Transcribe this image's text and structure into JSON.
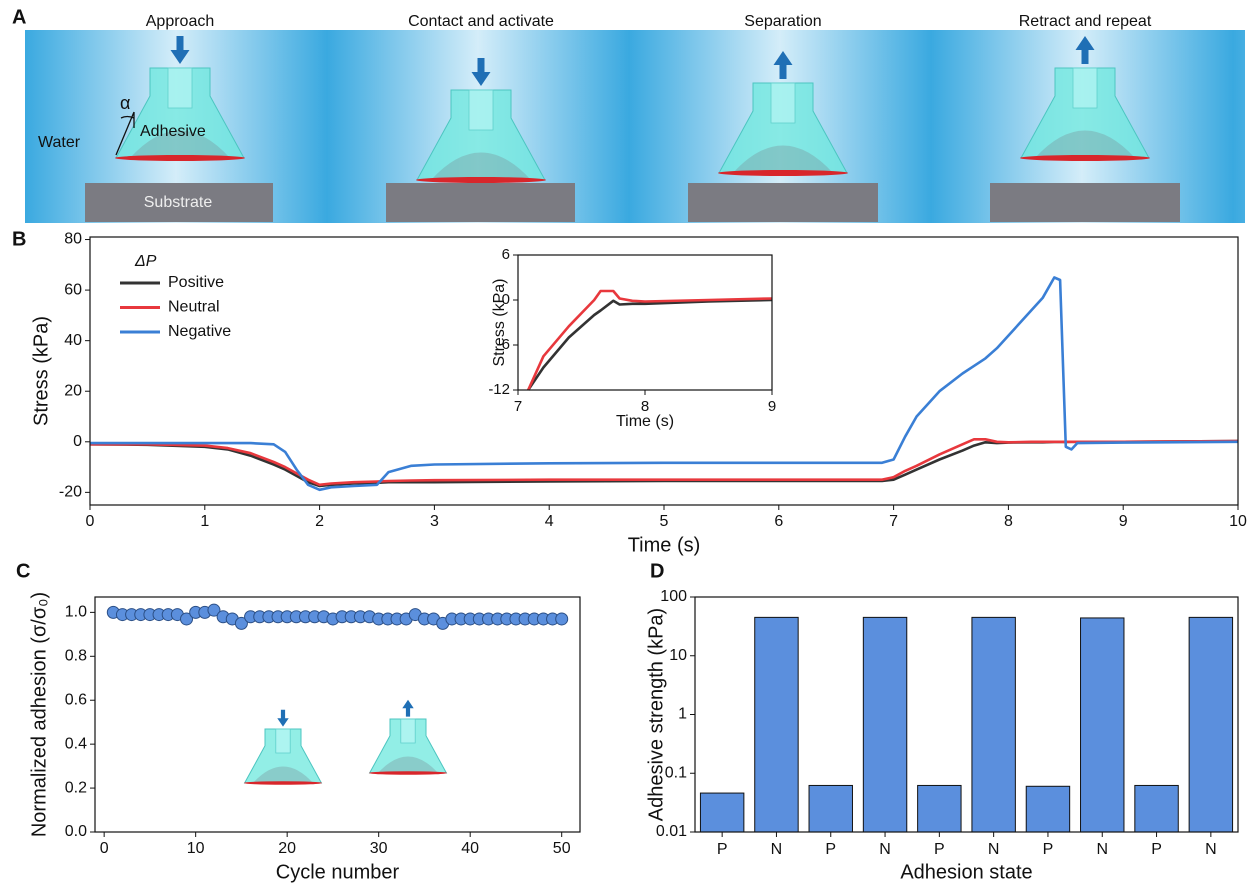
{
  "panel_labels": [
    "A",
    "B",
    "C",
    "D"
  ],
  "schematic": {
    "steps": [
      "Approach",
      "Contact and activate",
      "Separation",
      "Retract and repeat"
    ],
    "water_label": "Water",
    "adhesive_label": "Adhesive",
    "angle_label": "α",
    "substrate_label": "Substrate"
  },
  "chart_data": [
    {
      "type": "line",
      "xlabel": "Time (s)",
      "ylabel": "Stress (kPa)",
      "x": [
        0,
        0.5,
        1,
        1.2,
        1.4,
        1.6,
        1.7,
        1.8,
        1.9,
        2.0,
        2.1,
        2.3,
        2.5,
        2.6,
        2.8,
        3,
        4,
        5,
        6,
        6.9,
        7.0,
        7.1,
        7.2,
        7.4,
        7.6,
        7.7,
        7.8,
        7.9,
        8.0,
        8.2,
        8.3,
        8.4,
        8.45,
        8.5,
        8.55,
        8.6,
        9,
        10
      ],
      "series": [
        {
          "name": "Positive",
          "color": "#333333",
          "values": [
            -1,
            -1.2,
            -2,
            -3,
            -5.5,
            -9,
            -11,
            -13.5,
            -16,
            -17.5,
            -17,
            -16.5,
            -16.2,
            -16,
            -16,
            -16,
            -15.7,
            -15.5,
            -15.5,
            -15.5,
            -15,
            -13,
            -11,
            -7,
            -3.5,
            -1.5,
            -0.2,
            -0.5,
            -0.3,
            -0.2,
            -0.2,
            -0.1,
            -0.1,
            -0.1,
            0,
            0,
            0,
            0.3
          ]
        },
        {
          "name": "Neutral",
          "color": "#e8383d",
          "values": [
            -1,
            -1,
            -1.5,
            -2.5,
            -4.5,
            -8,
            -10,
            -12.5,
            -15,
            -17,
            -16.5,
            -16,
            -15.7,
            -15.5,
            -15.3,
            -15.2,
            -15,
            -15,
            -15,
            -15,
            -14,
            -11.5,
            -9.5,
            -5,
            -1,
            1,
            1,
            0,
            -0.2,
            0,
            0,
            0,
            0,
            0,
            0,
            0,
            0,
            0.3
          ]
        },
        {
          "name": "Negative",
          "color": "#3a7fd5",
          "values": [
            -0.5,
            -0.5,
            -0.5,
            -0.5,
            -0.5,
            -1,
            -4,
            -11,
            -17,
            -19,
            -18,
            -17.5,
            -17,
            -12,
            -9.5,
            -9,
            -8.5,
            -8.3,
            -8.3,
            -8.3,
            -7,
            2,
            10,
            20,
            27,
            30,
            33,
            37,
            42,
            52,
            57,
            65,
            64,
            -2,
            -3,
            -0.5,
            -0.3,
            0
          ]
        }
      ],
      "xlim": [
        0,
        10
      ],
      "xticks": [
        0,
        1,
        2,
        3,
        4,
        5,
        6,
        7,
        8,
        9,
        10
      ],
      "ylim": [
        -25,
        81
      ],
      "yticks": [
        -20,
        0,
        20,
        40,
        60,
        80
      ],
      "legend": "upper left",
      "legend_title": "ΔP"
    },
    {
      "type": "line",
      "xlabel": "Time (s)",
      "ylabel": "Stress (kPa)",
      "x": [
        7.08,
        7.2,
        7.4,
        7.6,
        7.65,
        7.75,
        7.8,
        7.9,
        8,
        8.5,
        9
      ],
      "series": [
        {
          "color": "#333333",
          "values": [
            -12,
            -9,
            -5,
            -2,
            -1.4,
            -0.1,
            -0.6,
            -0.5,
            -0.5,
            -0.2,
            0
          ]
        },
        {
          "color": "#e8383d",
          "values": [
            -12,
            -7.5,
            -3.5,
            0,
            1.2,
            1.2,
            0.2,
            -0.1,
            -0.2,
            0,
            0.2
          ]
        }
      ],
      "xlim": [
        7,
        9
      ],
      "xticks": [
        7,
        8,
        9
      ],
      "ylim": [
        -12,
        6
      ],
      "yticks": [
        -12,
        -6,
        0,
        6
      ]
    },
    {
      "type": "scatter",
      "xlabel": "Cycle number",
      "ylabel": "Normalized adhesion (σ/σ₀)",
      "x": [
        1,
        2,
        3,
        4,
        5,
        6,
        7,
        8,
        9,
        10,
        11,
        12,
        13,
        14,
        15,
        16,
        17,
        18,
        19,
        20,
        21,
        22,
        23,
        24,
        25,
        26,
        27,
        28,
        29,
        30,
        31,
        32,
        33,
        34,
        35,
        36,
        37,
        38,
        39,
        40,
        41,
        42,
        43,
        44,
        45,
        46,
        47,
        48,
        49,
        50
      ],
      "values": [
        1.0,
        0.99,
        0.99,
        0.99,
        0.99,
        0.99,
        0.99,
        0.99,
        0.97,
        1.0,
        1.0,
        1.01,
        0.98,
        0.97,
        0.95,
        0.98,
        0.98,
        0.98,
        0.98,
        0.98,
        0.98,
        0.98,
        0.98,
        0.98,
        0.97,
        0.98,
        0.98,
        0.98,
        0.98,
        0.97,
        0.97,
        0.97,
        0.97,
        0.99,
        0.97,
        0.97,
        0.95,
        0.97,
        0.97,
        0.97,
        0.97,
        0.97,
        0.97,
        0.97,
        0.97,
        0.97,
        0.97,
        0.97,
        0.97,
        0.97
      ],
      "color": "#5b8fdd",
      "xlim": [
        -1,
        52
      ],
      "xticks": [
        0,
        10,
        20,
        30,
        40,
        50
      ],
      "ylim": [
        0,
        1.07
      ],
      "yticks": [
        {
          "value": 0,
          "label": "0.0"
        },
        0.2,
        0.4,
        0.6,
        0.8,
        {
          "value": 1,
          "label": "1.0"
        }
      ]
    },
    {
      "type": "bar",
      "xlabel": "Adhesion state",
      "ylabel": "Adhesive strength (kPa)",
      "categories": [
        "P",
        "N",
        "P",
        "N",
        "P",
        "N",
        "P",
        "N",
        "P",
        "N"
      ],
      "values": [
        0.046,
        45,
        0.062,
        45,
        0.062,
        45,
        0.06,
        44,
        0.062,
        45
      ],
      "color": "#5b8fdd",
      "log_scale": true,
      "ylim": [
        0.01,
        100
      ],
      "yticks": [
        0.01,
        0.1,
        1,
        10,
        100
      ]
    }
  ]
}
